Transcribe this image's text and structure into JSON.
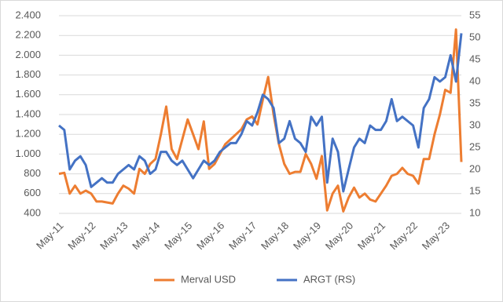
{
  "chart_data": {
    "type": "line",
    "categories": [
      "May-11",
      null,
      null,
      null,
      null,
      null,
      "May-12",
      null,
      null,
      null,
      null,
      null,
      "May-13",
      null,
      null,
      null,
      null,
      null,
      "May-14",
      null,
      null,
      null,
      null,
      null,
      "May-15",
      null,
      null,
      null,
      null,
      null,
      "May-16",
      null,
      null,
      null,
      null,
      null,
      "May-17",
      null,
      null,
      null,
      null,
      null,
      "May-18",
      null,
      null,
      null,
      null,
      null,
      "May-19",
      null,
      null,
      null,
      null,
      null,
      "May-20",
      null,
      null,
      null,
      null,
      null,
      "May-21",
      null,
      null,
      null,
      null,
      null,
      "May-22",
      null,
      null,
      null,
      null,
      null,
      "May-23",
      null,
      null,
      null
    ],
    "series": [
      {
        "name": "Merval USD",
        "color": "#ed7d31",
        "values": [
          800,
          810,
          600,
          680,
          600,
          630,
          600,
          520,
          520,
          510,
          500,
          600,
          680,
          650,
          600,
          850,
          800,
          900,
          950,
          1200,
          1480,
          1050,
          950,
          1150,
          1350,
          1200,
          1050,
          1330,
          850,
          900,
          1000,
          1100,
          1150,
          1200,
          1250,
          1350,
          1380,
          1300,
          1550,
          1780,
          1400,
          1100,
          900,
          800,
          820,
          820,
          1000,
          900,
          750,
          980,
          430,
          600,
          680,
          420,
          560,
          660,
          560,
          600,
          540,
          520,
          600,
          680,
          780,
          800,
          860,
          800,
          780,
          700,
          950,
          950,
          1200,
          1400,
          1650,
          1620,
          2260,
          920
        ]
      },
      {
        "name": "ARGT (RS)",
        "color": "#4472c4",
        "axis": "y2",
        "values": [
          30,
          29,
          20,
          22,
          23,
          21,
          16,
          17,
          18,
          17,
          17,
          19,
          20,
          21,
          20,
          23,
          22,
          19,
          20,
          24,
          24,
          22,
          21,
          22,
          20,
          18,
          20,
          22,
          21,
          22,
          24,
          25,
          26,
          26,
          28,
          31,
          30,
          33,
          37,
          36,
          34,
          26,
          27,
          31,
          27,
          26,
          24,
          32,
          30,
          32,
          17,
          27,
          24,
          15,
          20,
          25,
          27,
          26,
          30,
          29,
          29,
          31,
          36,
          31,
          32,
          31,
          30,
          25,
          34,
          36,
          41,
          40,
          41,
          46,
          40,
          51
        ]
      }
    ],
    "ylim": [
      400,
      2400
    ],
    "yticks": [
      400,
      600,
      800,
      {
        "value": 1000,
        "label": "1.000"
      },
      {
        "value": 1200,
        "label": "1.200"
      },
      {
        "value": 1400,
        "label": "1.400"
      },
      {
        "value": 1600,
        "label": "1.600"
      },
      {
        "value": 1800,
        "label": "1.800"
      },
      {
        "value": 2000,
        "label": "2.000"
      },
      {
        "value": 2200,
        "label": "2.200"
      },
      {
        "value": 2400,
        "label": "2.400"
      }
    ],
    "y2lim": [
      10,
      55
    ],
    "y2ticks": [
      10,
      15,
      20,
      25,
      30,
      35,
      40,
      45,
      50,
      55
    ],
    "grid": true,
    "legend": "bottom"
  }
}
